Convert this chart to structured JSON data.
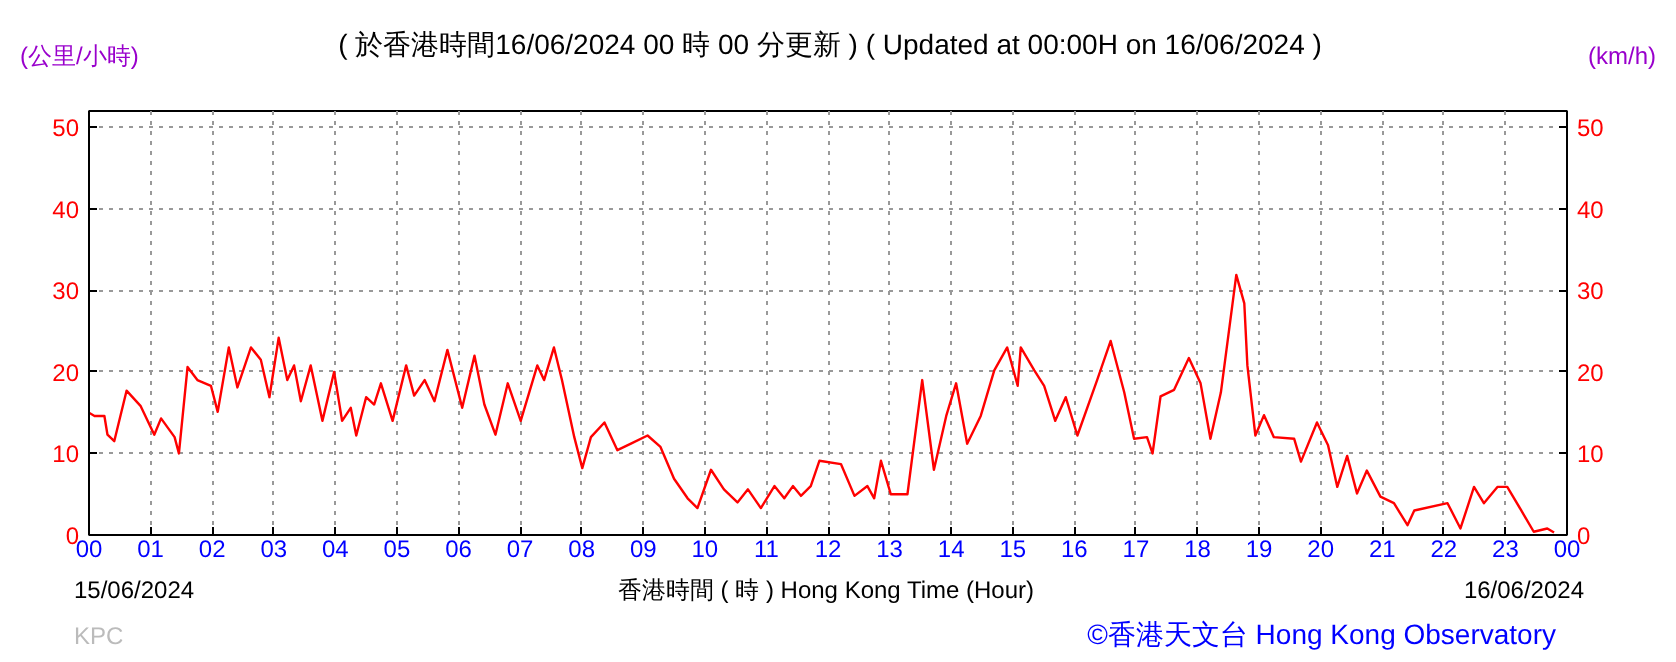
{
  "chart_data": {
    "type": "line",
    "title": "( 於香港時間16/06/2024 00 時 00 分更新 ) ( Updated at 00:00H on 16/06/2024 )",
    "ylabel": "(公里/小時)",
    "y2label": "(km/h)",
    "xlabel": "香港時間 ( 時 )  Hong Kong Time (Hour)",
    "annotations": [
      "15/06/2024",
      "16/06/2024",
      "KPC",
      "©香港天文台 Hong Kong Observatory"
    ],
    "xlim": [
      0,
      24
    ],
    "xticks": [
      {
        "value": 0,
        "label": "00"
      },
      {
        "value": 1,
        "label": "01"
      },
      {
        "value": 2,
        "label": "02"
      },
      {
        "value": 3,
        "label": "03"
      },
      {
        "value": 4,
        "label": "04"
      },
      {
        "value": 5,
        "label": "05"
      },
      {
        "value": 6,
        "label": "06"
      },
      {
        "value": 7,
        "label": "07"
      },
      {
        "value": 8,
        "label": "08"
      },
      {
        "value": 9,
        "label": "09"
      },
      {
        "value": 10,
        "label": "10"
      },
      {
        "value": 11,
        "label": "11"
      },
      {
        "value": 12,
        "label": "12"
      },
      {
        "value": 13,
        "label": "13"
      },
      {
        "value": 14,
        "label": "14"
      },
      {
        "value": 15,
        "label": "15"
      },
      {
        "value": 16,
        "label": "16"
      },
      {
        "value": 17,
        "label": "17"
      },
      {
        "value": 18,
        "label": "18"
      },
      {
        "value": 19,
        "label": "19"
      },
      {
        "value": 20,
        "label": "20"
      },
      {
        "value": 21,
        "label": "21"
      },
      {
        "value": 22,
        "label": "22"
      },
      {
        "value": 23,
        "label": "23"
      },
      {
        "value": 24,
        "label": "00"
      }
    ],
    "ylim": [
      0,
      52
    ],
    "yticks": [
      0,
      10,
      20,
      30,
      40,
      50
    ],
    "y2lim": [
      0,
      52
    ],
    "y2ticks": [
      0,
      10,
      20,
      30,
      40,
      50
    ],
    "grid": true,
    "line_style": "solid",
    "marker": "none",
    "series": [
      {
        "color": "#ff0000",
        "x": [
          0.0,
          0.09,
          0.25,
          0.3,
          0.41,
          0.61,
          0.84,
          1.06,
          1.17,
          1.39,
          1.46,
          1.6,
          1.76,
          1.98,
          2.09,
          2.27,
          2.41,
          2.63,
          2.79,
          2.93,
          3.08,
          3.22,
          3.33,
          3.44,
          3.6,
          3.79,
          3.98,
          4.11,
          4.25,
          4.34,
          4.5,
          4.63,
          4.74,
          4.93,
          5.15,
          5.28,
          5.45,
          5.61,
          5.82,
          6.06,
          6.26,
          6.42,
          6.6,
          6.8,
          7.01,
          7.28,
          7.39,
          7.55,
          7.68,
          7.88,
          8.01,
          8.15,
          8.37,
          8.58,
          8.8,
          9.07,
          9.28,
          9.5,
          9.72,
          9.88,
          10.1,
          10.31,
          10.53,
          10.7,
          10.91,
          11.13,
          11.29,
          11.43,
          11.56,
          11.72,
          11.86,
          12.21,
          12.43,
          12.64,
          12.75,
          12.86,
          13.02,
          13.29,
          13.53,
          13.72,
          13.92,
          14.08,
          14.26,
          14.48,
          14.7,
          14.91,
          15.08,
          15.13,
          15.35,
          15.51,
          15.69,
          15.86,
          16.05,
          16.37,
          16.59,
          16.81,
          16.97,
          17.18,
          17.27,
          17.4,
          17.62,
          17.86,
          18.05,
          18.21,
          18.38,
          18.63,
          18.76,
          18.81,
          18.94,
          19.08,
          19.24,
          19.57,
          19.68,
          19.94,
          20.12,
          20.27,
          20.43,
          20.59,
          20.75,
          20.97,
          21.19,
          21.41,
          21.52,
          22.06,
          22.27,
          22.49,
          22.65,
          22.87,
          23.03,
          23.25,
          23.46,
          23.68,
          23.79
        ],
        "values": [
          15.0,
          14.6,
          14.6,
          12.3,
          11.5,
          17.7,
          15.8,
          12.3,
          14.3,
          12.0,
          10.0,
          20.6,
          19.0,
          18.3,
          15.1,
          23.0,
          18.1,
          23.0,
          21.5,
          16.9,
          24.2,
          19.0,
          20.8,
          16.4,
          20.8,
          14.0,
          20.0,
          14.0,
          15.6,
          12.2,
          16.9,
          16.0,
          18.6,
          14.0,
          20.8,
          17.1,
          19.0,
          16.4,
          22.7,
          15.6,
          22.0,
          16.0,
          12.3,
          18.6,
          14.0,
          20.8,
          19.0,
          23.0,
          19.0,
          12.0,
          8.2,
          12.0,
          13.8,
          10.4,
          11.2,
          12.2,
          10.8,
          6.9,
          4.5,
          3.3,
          8.0,
          5.6,
          4.0,
          5.6,
          3.3,
          6.0,
          4.5,
          6.0,
          4.8,
          6.0,
          9.1,
          8.7,
          4.8,
          6.0,
          4.5,
          9.1,
          5.0,
          5.0,
          19.0,
          8.0,
          14.6,
          18.6,
          11.2,
          14.6,
          20.2,
          23.0,
          18.3,
          23.0,
          20.2,
          18.3,
          14.0,
          16.9,
          12.2,
          19.0,
          23.8,
          17.5,
          11.8,
          12.0,
          10.0,
          17.0,
          17.8,
          21.7,
          18.6,
          11.8,
          17.5,
          31.9,
          28.4,
          20.8,
          12.2,
          14.7,
          12.0,
          11.8,
          9.0,
          13.8,
          11.0,
          5.9,
          9.7,
          5.1,
          7.9,
          4.7,
          3.9,
          1.2,
          3.0,
          3.9,
          0.8,
          5.9,
          3.9,
          5.9,
          5.9,
          3.1,
          0.4,
          0.8,
          0.3
        ]
      }
    ]
  }
}
